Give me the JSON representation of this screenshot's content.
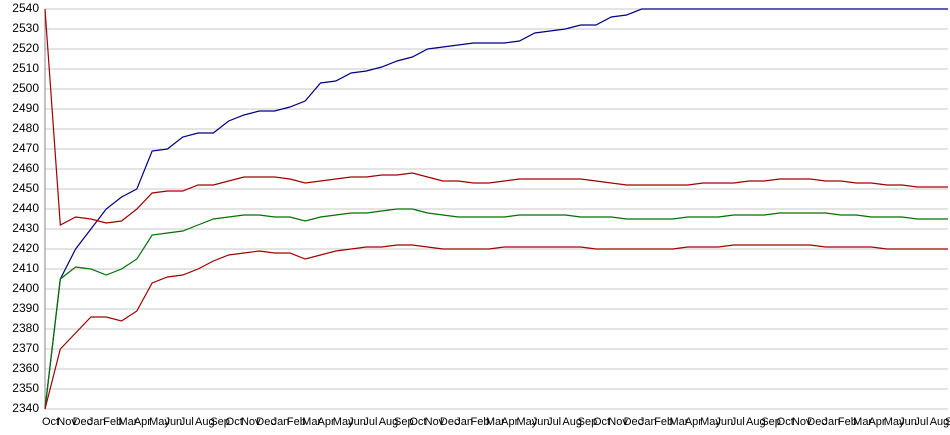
{
  "chart_data": {
    "type": "line",
    "categories": [
      "Oct",
      "Nov",
      "Dec",
      "Jan",
      "Feb",
      "Mar",
      "Apr",
      "May",
      "Jun",
      "Jul",
      "Aug",
      "Sep",
      "Oct",
      "Nov",
      "Dec",
      "Jan",
      "Feb",
      "Mar",
      "Apr",
      "May",
      "Jun",
      "Jul",
      "Aug",
      "Sep",
      "Oct",
      "Nov",
      "Dec",
      "Jan",
      "Feb",
      "Mar",
      "Apr",
      "May",
      "Jun",
      "Jul",
      "Aug",
      "Sep",
      "Oct",
      "Nov",
      "Dec",
      "Jan",
      "Feb",
      "Mar",
      "Apr",
      "May",
      "Jun",
      "Jul",
      "Aug",
      "Sep",
      "Oct",
      "Nov",
      "Dec",
      "Jan",
      "Feb",
      "Mar",
      "Apr",
      "May",
      "Jun",
      "Jul",
      "Aug",
      "Sep"
    ],
    "series": [
      {
        "color": "#000080",
        "values": [
          2340,
          2405,
          2420,
          2430,
          2440,
          2446,
          2450,
          2469,
          2470,
          2476,
          2478,
          2478,
          2484,
          2487,
          2489,
          2489,
          2491,
          2494,
          2503,
          2504,
          2508,
          2509,
          2511,
          2514,
          2516,
          2520,
          2521,
          2522,
          2523,
          2523,
          2523,
          2524,
          2528,
          2529,
          2530,
          2532,
          2532,
          2536,
          2537,
          2540,
          2540,
          2540,
          2540,
          2540,
          2540,
          2540,
          2540,
          2540,
          2540,
          2540,
          2540,
          2540,
          2540,
          2540,
          2540,
          2540,
          2540,
          2540,
          2540,
          2540
        ]
      },
      {
        "color": "#a00000",
        "values": [
          2540,
          2432,
          2436,
          2435,
          2433,
          2434,
          2440,
          2448,
          2449,
          2449,
          2452,
          2452,
          2454,
          2456,
          2456,
          2456,
          2455,
          2453,
          2454,
          2455,
          2456,
          2456,
          2457,
          2457,
          2458,
          2456,
          2454,
          2454,
          2453,
          2453,
          2454,
          2455,
          2455,
          2455,
          2455,
          2455,
          2454,
          2453,
          2452,
          2452,
          2452,
          2452,
          2452,
          2453,
          2453,
          2453,
          2454,
          2454,
          2455,
          2455,
          2455,
          2454,
          2454,
          2453,
          2453,
          2452,
          2452,
          2451,
          2451,
          2451
        ]
      },
      {
        "color": "#007000",
        "values": [
          2340,
          2405,
          2411,
          2410,
          2407,
          2410,
          2415,
          2427,
          2428,
          2429,
          2432,
          2435,
          2436,
          2437,
          2437,
          2436,
          2436,
          2434,
          2436,
          2437,
          2438,
          2438,
          2439,
          2440,
          2440,
          2438,
          2437,
          2436,
          2436,
          2436,
          2436,
          2437,
          2437,
          2437,
          2437,
          2436,
          2436,
          2436,
          2435,
          2435,
          2435,
          2435,
          2436,
          2436,
          2436,
          2437,
          2437,
          2437,
          2438,
          2438,
          2438,
          2438,
          2437,
          2437,
          2436,
          2436,
          2436,
          2435,
          2435,
          2435
        ]
      },
      {
        "color": "#a00000",
        "values": [
          2340,
          2370,
          2378,
          2386,
          2386,
          2384,
          2389,
          2403,
          2406,
          2407,
          2410,
          2414,
          2417,
          2418,
          2419,
          2418,
          2418,
          2415,
          2417,
          2419,
          2420,
          2421,
          2421,
          2422,
          2422,
          2421,
          2420,
          2420,
          2420,
          2420,
          2421,
          2421,
          2421,
          2421,
          2421,
          2421,
          2420,
          2420,
          2420,
          2420,
          2420,
          2420,
          2421,
          2421,
          2421,
          2422,
          2422,
          2422,
          2422,
          2422,
          2422,
          2421,
          2421,
          2421,
          2421,
          2420,
          2420,
          2420,
          2420,
          2420
        ]
      }
    ],
    "ylim": [
      2340,
      2540
    ],
    "yticks": [
      2340,
      2350,
      2360,
      2370,
      2380,
      2390,
      2400,
      2410,
      2420,
      2430,
      2440,
      2450,
      2460,
      2470,
      2480,
      2490,
      2500,
      2510,
      2520,
      2530,
      2540
    ],
    "grid": true
  }
}
